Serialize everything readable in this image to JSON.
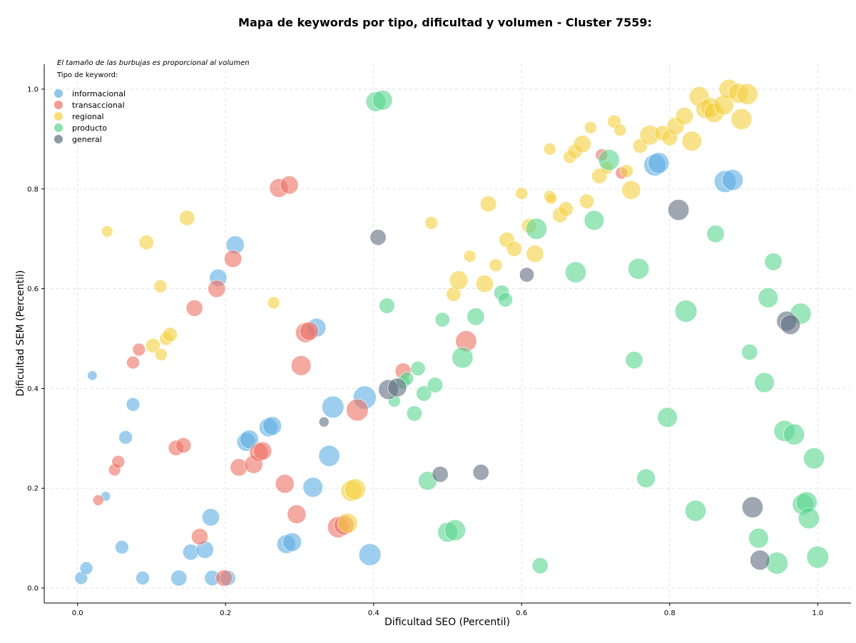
{
  "chart_data": {
    "type": "scatter",
    "title": "Mapa de keywords por tipo, dificultad y volumen - Cluster 7559:",
    "xlabel": "Dificultad SEO (Percentil)",
    "ylabel": "Dificultad SEM (Percentil)",
    "xlim": [
      -0.045,
      1.045
    ],
    "ylim": [
      -0.03,
      1.05
    ],
    "xticks": [
      "0.0",
      "0.2",
      "0.4",
      "0.6",
      "0.8",
      "1.0"
    ],
    "yticks": [
      "0.0",
      "0.2",
      "0.4",
      "0.6",
      "0.8",
      "1.0"
    ],
    "grid": true,
    "note": "El tamaño de las burbujas es proporcional al volumen",
    "legend_title": "Tipo de keyword:",
    "legend_position": "top-left",
    "series": [
      {
        "name": "informacional",
        "color": "#5DADE2",
        "points": [
          [
            0.005,
            0.02,
            0.1
          ],
          [
            0.012,
            0.04,
            0.1
          ],
          [
            0.02,
            0.426,
            0.02
          ],
          [
            0.038,
            0.184,
            0.02
          ],
          [
            0.06,
            0.082,
            0.12
          ],
          [
            0.065,
            0.302,
            0.12
          ],
          [
            0.075,
            0.368,
            0.12
          ],
          [
            0.088,
            0.02,
            0.12
          ],
          [
            0.137,
            0.02,
            0.2
          ],
          [
            0.153,
            0.072,
            0.2
          ],
          [
            0.172,
            0.077,
            0.25
          ],
          [
            0.18,
            0.142,
            0.25
          ],
          [
            0.182,
            0.02,
            0.18
          ],
          [
            0.19,
            0.622,
            0.25
          ],
          [
            0.203,
            0.02,
            0.18
          ],
          [
            0.213,
            0.688,
            0.28
          ],
          [
            0.228,
            0.293,
            0.3
          ],
          [
            0.232,
            0.298,
            0.3
          ],
          [
            0.258,
            0.322,
            0.3
          ],
          [
            0.263,
            0.325,
            0.3
          ],
          [
            0.282,
            0.088,
            0.3
          ],
          [
            0.29,
            0.092,
            0.3
          ],
          [
            0.323,
            0.522,
            0.3
          ],
          [
            0.318,
            0.202,
            0.35
          ],
          [
            0.34,
            0.265,
            0.4
          ],
          [
            0.345,
            0.363,
            0.45
          ],
          [
            0.388,
            0.382,
            0.5
          ],
          [
            0.395,
            0.067,
            0.45
          ],
          [
            0.78,
            0.848,
            0.45
          ],
          [
            0.785,
            0.852,
            0.4
          ],
          [
            0.875,
            0.815,
            0.45
          ],
          [
            0.885,
            0.818,
            0.4
          ]
        ]
      },
      {
        "name": "transaccional",
        "color": "#EC7063",
        "points": [
          [
            0.028,
            0.176,
            0.05
          ],
          [
            0.05,
            0.237,
            0.08
          ],
          [
            0.055,
            0.253,
            0.1
          ],
          [
            0.075,
            0.452,
            0.1
          ],
          [
            0.083,
            0.478,
            0.1
          ],
          [
            0.133,
            0.281,
            0.18
          ],
          [
            0.143,
            0.286,
            0.18
          ],
          [
            0.158,
            0.561,
            0.22
          ],
          [
            0.165,
            0.103,
            0.22
          ],
          [
            0.188,
            0.6,
            0.25
          ],
          [
            0.198,
            0.02,
            0.22
          ],
          [
            0.21,
            0.66,
            0.25
          ],
          [
            0.218,
            0.242,
            0.25
          ],
          [
            0.238,
            0.248,
            0.28
          ],
          [
            0.245,
            0.272,
            0.3
          ],
          [
            0.25,
            0.275,
            0.28
          ],
          [
            0.272,
            0.802,
            0.3
          ],
          [
            0.28,
            0.209,
            0.3
          ],
          [
            0.286,
            0.808,
            0.28
          ],
          [
            0.296,
            0.148,
            0.3
          ],
          [
            0.302,
            0.446,
            0.35
          ],
          [
            0.308,
            0.512,
            0.35
          ],
          [
            0.313,
            0.515,
            0.3
          ],
          [
            0.352,
            0.122,
            0.4
          ],
          [
            0.36,
            0.126,
            0.35
          ],
          [
            0.378,
            0.357,
            0.45
          ],
          [
            0.44,
            0.435,
            0.2
          ],
          [
            0.525,
            0.495,
            0.4
          ],
          [
            0.708,
            0.868,
            0.08
          ],
          [
            0.735,
            0.832,
            0.08
          ]
        ]
      },
      {
        "name": "regional",
        "color": "#F4D03F",
        "points": [
          [
            0.04,
            0.715,
            0.06
          ],
          [
            0.093,
            0.693,
            0.15
          ],
          [
            0.102,
            0.486,
            0.15
          ],
          [
            0.112,
            0.605,
            0.1
          ],
          [
            0.113,
            0.468,
            0.08
          ],
          [
            0.12,
            0.5,
            0.12
          ],
          [
            0.125,
            0.508,
            0.15
          ],
          [
            0.148,
            0.742,
            0.18
          ],
          [
            0.265,
            0.572,
            0.08
          ],
          [
            0.365,
            0.13,
            0.35
          ],
          [
            0.37,
            0.195,
            0.4
          ],
          [
            0.375,
            0.198,
            0.4
          ],
          [
            0.478,
            0.732,
            0.1
          ],
          [
            0.508,
            0.589,
            0.15
          ],
          [
            0.515,
            0.617,
            0.3
          ],
          [
            0.53,
            0.665,
            0.08
          ],
          [
            0.55,
            0.61,
            0.25
          ],
          [
            0.555,
            0.77,
            0.2
          ],
          [
            0.565,
            0.647,
            0.1
          ],
          [
            0.58,
            0.698,
            0.18
          ],
          [
            0.59,
            0.68,
            0.18
          ],
          [
            0.6,
            0.791,
            0.08
          ],
          [
            0.61,
            0.726,
            0.15
          ],
          [
            0.618,
            0.67,
            0.25
          ],
          [
            0.638,
            0.785,
            0.08
          ],
          [
            0.638,
            0.88,
            0.08
          ],
          [
            0.64,
            0.781,
            0.06
          ],
          [
            0.652,
            0.748,
            0.18
          ],
          [
            0.66,
            0.76,
            0.15
          ],
          [
            0.665,
            0.864,
            0.1
          ],
          [
            0.672,
            0.875,
            0.15
          ],
          [
            0.682,
            0.89,
            0.25
          ],
          [
            0.688,
            0.775,
            0.15
          ],
          [
            0.693,
            0.923,
            0.08
          ],
          [
            0.705,
            0.826,
            0.18
          ],
          [
            0.715,
            0.842,
            0.1
          ],
          [
            0.725,
            0.935,
            0.12
          ],
          [
            0.733,
            0.918,
            0.08
          ],
          [
            0.742,
            0.836,
            0.1
          ],
          [
            0.748,
            0.798,
            0.3
          ],
          [
            0.76,
            0.886,
            0.15
          ],
          [
            0.773,
            0.908,
            0.35
          ],
          [
            0.79,
            0.912,
            0.18
          ],
          [
            0.8,
            0.903,
            0.2
          ],
          [
            0.808,
            0.926,
            0.25
          ],
          [
            0.82,
            0.946,
            0.25
          ],
          [
            0.83,
            0.896,
            0.35
          ],
          [
            0.84,
            0.985,
            0.35
          ],
          [
            0.848,
            0.96,
            0.3
          ],
          [
            0.855,
            0.963,
            0.35
          ],
          [
            0.86,
            0.953,
            0.35
          ],
          [
            0.873,
            0.968,
            0.35
          ],
          [
            0.88,
            1.0,
            0.35
          ],
          [
            0.893,
            0.992,
            0.35
          ],
          [
            0.897,
            0.94,
            0.4
          ],
          [
            0.905,
            0.99,
            0.4
          ]
        ]
      },
      {
        "name": "producto",
        "color": "#58D68D",
        "points": [
          [
            0.403,
            0.975,
            0.35
          ],
          [
            0.412,
            0.978,
            0.35
          ],
          [
            0.418,
            0.566,
            0.18
          ],
          [
            0.428,
            0.375,
            0.08
          ],
          [
            0.44,
            0.413,
            0.12
          ],
          [
            0.445,
            0.42,
            0.12
          ],
          [
            0.455,
            0.35,
            0.18
          ],
          [
            0.46,
            0.44,
            0.15
          ],
          [
            0.468,
            0.39,
            0.18
          ],
          [
            0.473,
            0.215,
            0.3
          ],
          [
            0.483,
            0.407,
            0.18
          ],
          [
            0.493,
            0.538,
            0.15
          ],
          [
            0.5,
            0.112,
            0.35
          ],
          [
            0.51,
            0.116,
            0.4
          ],
          [
            0.52,
            0.462,
            0.4
          ],
          [
            0.538,
            0.544,
            0.25
          ],
          [
            0.573,
            0.592,
            0.18
          ],
          [
            0.578,
            0.578,
            0.15
          ],
          [
            0.62,
            0.72,
            0.4
          ],
          [
            0.625,
            0.045,
            0.2
          ],
          [
            0.673,
            0.633,
            0.4
          ],
          [
            0.698,
            0.737,
            0.35
          ],
          [
            0.718,
            0.858,
            0.4
          ],
          [
            0.752,
            0.457,
            0.25
          ],
          [
            0.758,
            0.64,
            0.4
          ],
          [
            0.768,
            0.22,
            0.3
          ],
          [
            0.797,
            0.342,
            0.35
          ],
          [
            0.822,
            0.555,
            0.45
          ],
          [
            0.835,
            0.155,
            0.4
          ],
          [
            0.862,
            0.71,
            0.25
          ],
          [
            0.908,
            0.473,
            0.2
          ],
          [
            0.92,
            0.1,
            0.35
          ],
          [
            0.928,
            0.412,
            0.35
          ],
          [
            0.933,
            0.582,
            0.35
          ],
          [
            0.94,
            0.654,
            0.25
          ],
          [
            0.945,
            0.05,
            0.45
          ],
          [
            0.955,
            0.315,
            0.4
          ],
          [
            0.968,
            0.308,
            0.4
          ],
          [
            0.977,
            0.55,
            0.4
          ],
          [
            0.98,
            0.168,
            0.4
          ],
          [
            0.985,
            0.172,
            0.4
          ],
          [
            0.988,
            0.14,
            0.4
          ],
          [
            0.995,
            0.26,
            0.4
          ],
          [
            1.0,
            0.062,
            0.45
          ]
        ]
      },
      {
        "name": "general",
        "color": "#5D6D7E",
        "points": [
          [
            0.333,
            0.333,
            0.03
          ],
          [
            0.406,
            0.703,
            0.2
          ],
          [
            0.42,
            0.398,
            0.35
          ],
          [
            0.432,
            0.402,
            0.3
          ],
          [
            0.49,
            0.228,
            0.2
          ],
          [
            0.545,
            0.232,
            0.2
          ],
          [
            0.607,
            0.628,
            0.15
          ],
          [
            0.812,
            0.758,
            0.4
          ],
          [
            0.912,
            0.162,
            0.4
          ],
          [
            0.922,
            0.056,
            0.35
          ],
          [
            0.958,
            0.535,
            0.35
          ],
          [
            0.963,
            0.528,
            0.35
          ]
        ]
      }
    ]
  }
}
